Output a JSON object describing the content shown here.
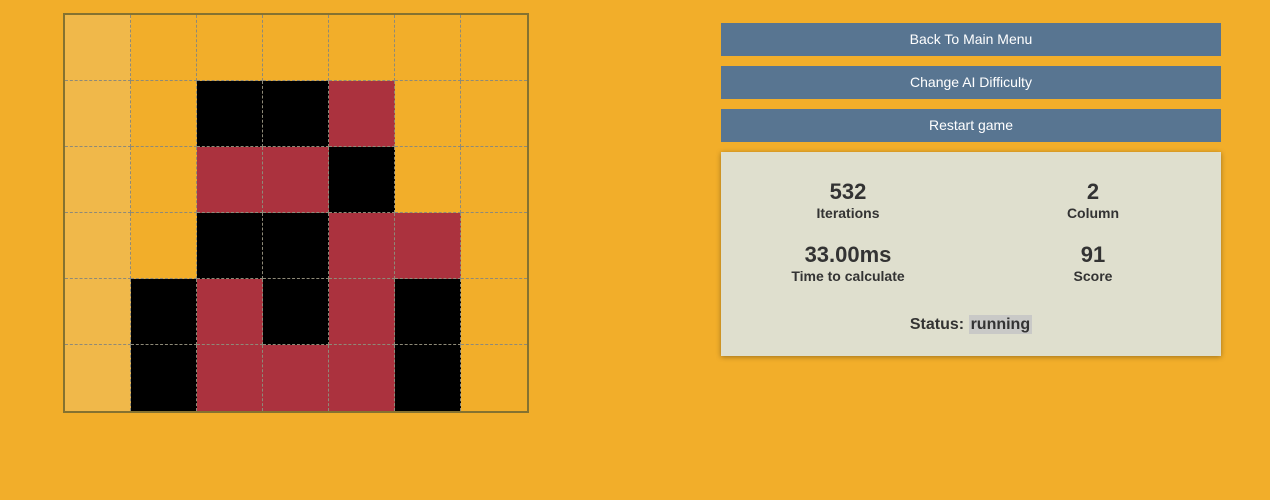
{
  "board": {
    "rows": 6,
    "cols": 7,
    "highlight_col": 0,
    "cells": [
      [
        "",
        "",
        "",
        "",
        "",
        "",
        ""
      ],
      [
        "",
        "",
        "p1",
        "p1",
        "p2",
        "",
        ""
      ],
      [
        "",
        "",
        "p2",
        "p2",
        "p1",
        "",
        ""
      ],
      [
        "",
        "",
        "p1",
        "p1",
        "p2",
        "p2",
        ""
      ],
      [
        "",
        "p1",
        "p2",
        "p1",
        "p2",
        "p1",
        ""
      ],
      [
        "",
        "p1",
        "p2",
        "p2",
        "p2",
        "p1",
        ""
      ]
    ]
  },
  "colors": {
    "background": "#f2ae2a",
    "player1": "#000000",
    "player2": "#ab323e",
    "button": "#587591",
    "panel": "#dfdfce"
  },
  "buttons": {
    "back": "Back To Main Menu",
    "difficulty": "Change AI Difficulty",
    "restart": "Restart game"
  },
  "stats": {
    "iterations": {
      "value": "532",
      "label": "Iterations"
    },
    "column": {
      "value": "2",
      "label": "Column"
    },
    "time": {
      "value": "33.00ms",
      "label": "Time to calculate"
    },
    "score": {
      "value": "91",
      "label": "Score"
    }
  },
  "status": {
    "label": "Status:",
    "value": "running"
  }
}
